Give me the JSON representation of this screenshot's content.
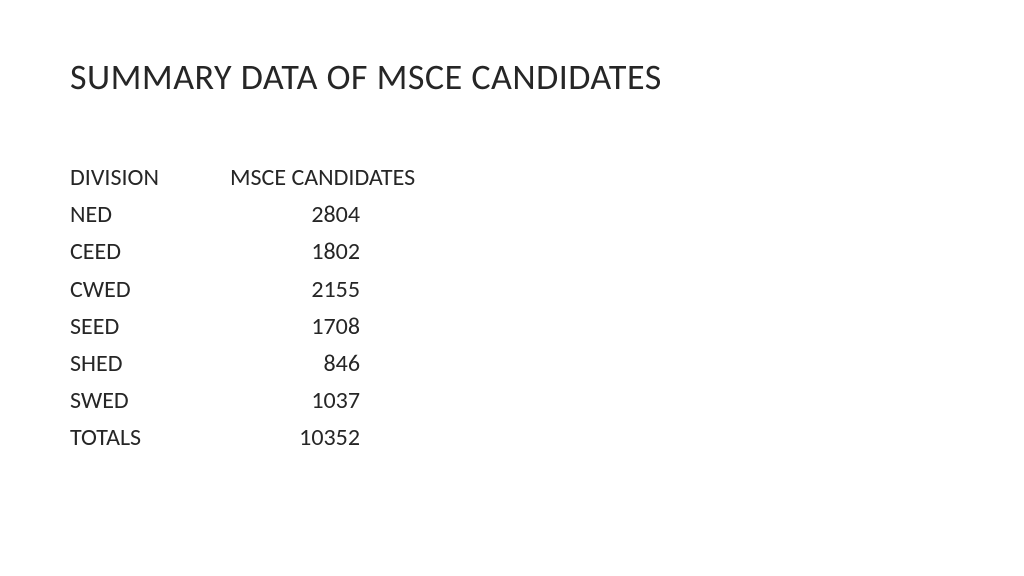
{
  "title": "SUMMARY DATA OF MSCE CANDIDATES",
  "table": {
    "type": "table",
    "columns": [
      "DIVISION",
      "MSCE CANDIDATES"
    ],
    "rows": [
      {
        "division": "NED",
        "value": "2804"
      },
      {
        "division": "CEED",
        "value": "1802"
      },
      {
        "division": "CWED",
        "value": "2155"
      },
      {
        "division": "SEED",
        "value": "1708"
      },
      {
        "division": "SHED",
        "value": "846"
      },
      {
        "division": "SWED",
        "value": "1037"
      },
      {
        "division": "TOTALS",
        "value": "10352"
      }
    ],
    "text_color": "#262626",
    "background_color": "#ffffff",
    "title_fontsize": 36,
    "body_fontsize": 24,
    "col_division_width": 160,
    "col_value_width": 130
  }
}
